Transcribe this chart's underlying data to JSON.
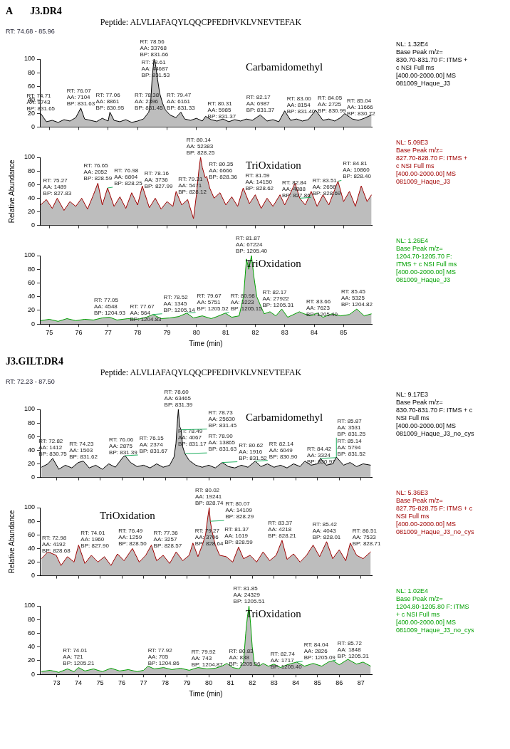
{
  "chart_data": [
    {
      "type": "area",
      "title": "J3.DR4",
      "xlim": [
        74.68,
        85.96
      ],
      "xticks": [
        75,
        76,
        77,
        78,
        79,
        80,
        81,
        82,
        83,
        84,
        85
      ],
      "ylim": [
        0,
        100
      ],
      "yticks": [
        0,
        20,
        40,
        60,
        80,
        100
      ],
      "tick_labels": "y",
      "x": [
        74.71,
        74.9,
        75.1,
        75.3,
        75.5,
        75.7,
        75.9,
        76.07,
        76.2,
        76.4,
        76.6,
        76.8,
        77.0,
        77.06,
        77.2,
        77.4,
        77.6,
        77.8,
        78.0,
        78.2,
        78.38,
        78.45,
        78.5,
        78.56,
        78.61,
        78.68,
        78.75,
        78.85,
        78.95,
        79.1,
        79.3,
        79.47,
        79.6,
        79.8,
        80.0,
        80.2,
        80.31,
        80.5,
        80.7,
        80.9,
        81.1,
        81.3,
        81.5,
        81.7,
        81.9,
        82.17,
        82.4,
        82.6,
        82.8,
        83.0,
        83.2,
        83.4,
        83.6,
        83.8,
        84.05,
        84.3,
        84.5,
        84.7,
        84.9,
        85.04,
        85.3,
        85.5,
        85.7,
        85.95
      ],
      "series": [
        {
          "color": "#000000",
          "values": [
            20,
            8,
            10,
            7,
            11,
            9,
            14,
            28,
            12,
            10,
            8,
            13,
            9,
            22,
            10,
            8,
            11,
            7,
            9,
            12,
            22,
            40,
            75,
            100,
            92,
            70,
            50,
            35,
            25,
            18,
            14,
            22,
            12,
            10,
            13,
            9,
            16,
            11,
            9,
            12,
            8,
            11,
            9,
            12,
            10,
            18,
            9,
            11,
            8,
            24,
            10,
            12,
            9,
            11,
            25,
            10,
            12,
            9,
            14,
            20,
            12,
            10,
            13,
            18
          ]
        }
      ],
      "annotations": [
        "Carbamidomethyl",
        "NL: 1.32E4\nBase Peak m/z=\n830.70-831.70 F: ITMS +\nc NSI Full ms\n[400.00-2000.00]  MS\n081009_Haque_J3",
        "A",
        "Peptide: ALVLIAFAQYLQQCPFEDHVKLVNEVTEFAK",
        "RT: 74.68 - 85.96",
        {
          "text": "RT: 74.71\nAA: 9743\nBP: 831.65",
          "x": 74.71,
          "y": 20
        },
        {
          "text": "RT: 76.07\nAA: 7104\nBP: 831.63",
          "x": 76.07,
          "y": 28
        },
        {
          "text": "RT: 77.06\nAA: 8861\nBP: 830.95",
          "x": 77.06,
          "y": 22
        },
        {
          "text": "RT: 78.38\nAA: 2396\nBP: 831.45",
          "x": 78.38,
          "y": 22
        },
        {
          "text": "RT: 78.56\nAA: 33768\nBP: 831.66",
          "x": 78.56,
          "y": 100
        },
        {
          "text": "RT: 78.61\nAA: 44687\nBP: 831.53",
          "x": 78.61,
          "y": 70
        },
        {
          "text": "RT: 79.47\nAA: 6161\nBP: 831.33",
          "x": 79.47,
          "y": 22
        },
        {
          "text": "RT: 80.31\nAA: 5985\nBP: 831.37",
          "x": 80.31,
          "y": 16
        },
        {
          "text": "RT: 82.17\nAA: 6987\nBP: 831.37",
          "x": 82.17,
          "y": 18
        },
        {
          "text": "RT: 83.00\nAA: 8154\nBP: 831.40",
          "x": 83.0,
          "y": 24
        },
        {
          "text": "RT: 84.05\nAA: 2725\nBP: 830.99",
          "x": 84.05,
          "y": 25
        },
        {
          "text": "RT: 85.04\nAA: 11666\nBP: 830.72",
          "x": 85.04,
          "y": 20
        }
      ]
    },
    {
      "type": "area",
      "ylabel": "Relative Abundance",
      "xlim": [
        74.68,
        85.96
      ],
      "xticks": [
        75,
        76,
        77,
        78,
        79,
        80,
        81,
        82,
        83,
        84,
        85
      ],
      "ylim": [
        0,
        100
      ],
      "yticks": [
        0,
        20,
        40,
        60,
        80,
        100
      ],
      "tick_labels": "y",
      "x": [
        74.7,
        74.9,
        75.1,
        75.27,
        75.5,
        75.7,
        75.9,
        76.1,
        76.3,
        76.5,
        76.65,
        76.8,
        76.98,
        77.2,
        77.4,
        77.6,
        77.8,
        78.0,
        78.16,
        78.4,
        78.6,
        78.8,
        79.0,
        79.2,
        79.31,
        79.5,
        79.7,
        79.9,
        80.0,
        80.08,
        80.14,
        80.2,
        80.3,
        80.35,
        80.45,
        80.6,
        80.8,
        81.0,
        81.2,
        81.4,
        81.59,
        81.8,
        82.0,
        82.2,
        82.4,
        82.6,
        82.84,
        83.0,
        83.2,
        83.35,
        83.51,
        83.7,
        83.9,
        84.1,
        84.3,
        84.5,
        84.81,
        85.0,
        85.2,
        85.4,
        85.6,
        85.8,
        85.95
      ],
      "series": [
        {
          "color": "#a00000",
          "values": [
            30,
            38,
            25,
            40,
            22,
            35,
            28,
            40,
            24,
            45,
            62,
            30,
            55,
            28,
            42,
            25,
            48,
            30,
            58,
            26,
            40,
            24,
            35,
            28,
            50,
            30,
            38,
            10,
            45,
            80,
            100,
            85,
            70,
            72,
            55,
            40,
            48,
            30,
            42,
            28,
            55,
            32,
            45,
            25,
            40,
            28,
            45,
            30,
            48,
            62,
            40,
            30,
            50,
            28,
            45,
            30,
            65,
            35,
            50,
            28,
            58,
            35,
            45
          ]
        }
      ],
      "annotations": [
        "TriOxidation",
        "NL: 5.09E3\nBase Peak m/z=\n827.70-828.70 F: ITMS +\nc NSI Full ms\n[400.00-2000.00]  MS\n081009_Haque_J3",
        {
          "text": "RT: 75.27\nAA: 1489\nBP: 827.83",
          "x": 75.27,
          "y": 40
        },
        {
          "text": "RT: 76.65\nAA: 2052\nBP: 828.59",
          "x": 76.65,
          "y": 62
        },
        {
          "text": "RT: 76.98\nAA: 6804\nBP: 828.25",
          "x": 76.98,
          "y": 55
        },
        {
          "text": "RT: 78.16\nAA: 3736\nBP: 827.99",
          "x": 78.16,
          "y": 58
        },
        {
          "text": "RT: 79.31\nAA: 5471\nBP: 828.12",
          "x": 79.31,
          "y": 50
        },
        {
          "text": "RT: 80.14\nAA: 52383\nBP: 828.25",
          "x": 80.14,
          "y": 100
        },
        {
          "text": "RT: 80.35\nAA: 6666\nBP: 828.36",
          "x": 80.35,
          "y": 72
        },
        {
          "text": "RT: 81.59\nAA: 14150\nBP: 828.62",
          "x": 81.59,
          "y": 55
        },
        {
          "text": "RT: 82.84\nAA: 4888\nBP: 827.86",
          "x": 82.84,
          "y": 45
        },
        {
          "text": "RT: 83.51\nAA: 2658\nBP: 828.69",
          "x": 83.51,
          "y": 40
        },
        {
          "text": "RT: 84.81\nAA: 10860\nBP: 828.40",
          "x": 84.81,
          "y": 65
        }
      ]
    },
    {
      "type": "area",
      "xlabel": "Time (min)",
      "xlim": [
        74.68,
        85.96
      ],
      "xticks": [
        75,
        76,
        77,
        78,
        79,
        80,
        81,
        82,
        83,
        84,
        85
      ],
      "ylim": [
        0,
        100
      ],
      "yticks": [
        0,
        20,
        40,
        60,
        80,
        100
      ],
      "x": [
        74.7,
        75.0,
        75.3,
        75.6,
        75.9,
        76.2,
        76.5,
        76.8,
        77.05,
        77.3,
        77.67,
        78.0,
        78.3,
        78.52,
        78.8,
        79.1,
        79.4,
        79.67,
        79.9,
        80.2,
        80.5,
        80.7,
        80.98,
        81.2,
        81.45,
        81.6,
        81.7,
        81.78,
        81.87,
        81.95,
        82.05,
        82.17,
        82.3,
        82.5,
        82.7,
        82.9,
        83.1,
        83.3,
        83.5,
        83.66,
        83.9,
        84.1,
        84.3,
        84.6,
        84.9,
        85.2,
        85.45,
        85.7,
        85.95
      ],
      "series": [
        {
          "color": "#00a000",
          "values": [
            5,
            7,
            4,
            8,
            5,
            7,
            6,
            9,
            10,
            6,
            8,
            7,
            10,
            14,
            8,
            9,
            11,
            16,
            9,
            12,
            8,
            11,
            16,
            10,
            12,
            40,
            95,
            80,
            100,
            70,
            40,
            28,
            15,
            18,
            12,
            22,
            10,
            14,
            18,
            15,
            12,
            16,
            10,
            15,
            12,
            14,
            22,
            12,
            15
          ]
        }
      ],
      "annotations": [
        "TriOxidation",
        "NL: 1.26E4\nBase Peak m/z=\n1204.70-1205.70 F:\nITMS + c NSI Full ms\n[400.00-2000.00]  MS\n081009_Haque_J3",
        {
          "text": "RT: 77.05\nAA: 4548\nBP: 1204.93",
          "x": 77.05,
          "y": 10
        },
        {
          "text": "RT: 77.67\nAA: 564\nBP: 1204.83",
          "x": 77.67,
          "y": 8
        },
        {
          "text": "RT: 78.52\nAA: 1345\nBP: 1205.14",
          "x": 78.52,
          "y": 14
        },
        {
          "text": "RT: 79.67\nAA: 5751\nBP: 1205.52",
          "x": 79.67,
          "y": 16
        },
        {
          "text": "RT: 80.98\nAA: 3223\nBP: 1205.15",
          "x": 80.98,
          "y": 16
        },
        {
          "text": "RT: 81.87\nAA: 67224\nBP: 1205.40",
          "x": 81.87,
          "y": 100
        },
        {
          "text": "RT: 82.17\nAA: 27922\nBP: 1205.31",
          "x": 82.17,
          "y": 28
        },
        {
          "text": "RT: 83.66\nAA: 7623\nBP: 1205.40",
          "x": 83.66,
          "y": 15
        },
        {
          "text": "RT: 85.45\nAA: 5325\nBP: 1204.82",
          "x": 85.45,
          "y": 22
        }
      ]
    },
    {
      "type": "area",
      "title": "J3.GILT.DR4",
      "xlim": [
        72.23,
        87.5
      ],
      "xticks": [
        73,
        74,
        75,
        76,
        77,
        78,
        79,
        80,
        81,
        82,
        83,
        84,
        85,
        86,
        87
      ],
      "ylim": [
        0,
        100
      ],
      "yticks": [
        0,
        20,
        40,
        60,
        80,
        100
      ],
      "tick_labels": "y",
      "x": [
        72.3,
        72.6,
        72.82,
        73.1,
        73.4,
        73.7,
        74.0,
        74.23,
        74.5,
        74.8,
        75.1,
        75.4,
        75.7,
        76.06,
        76.15,
        76.4,
        76.7,
        77.0,
        77.3,
        77.6,
        77.9,
        78.2,
        78.4,
        78.49,
        78.55,
        78.6,
        78.66,
        78.73,
        78.8,
        78.9,
        79.1,
        79.4,
        79.7,
        80.0,
        80.3,
        80.62,
        80.9,
        81.2,
        81.5,
        81.8,
        82.14,
        82.4,
        82.7,
        83.0,
        83.3,
        83.6,
        83.9,
        84.2,
        84.42,
        84.7,
        85.0,
        85.14,
        85.4,
        85.7,
        85.87,
        86.2,
        86.5,
        86.8,
        87.1,
        87.45
      ],
      "series": [
        {
          "color": "#000000",
          "values": [
            15,
            20,
            28,
            12,
            18,
            14,
            22,
            24,
            14,
            18,
            12,
            20,
            15,
            30,
            32,
            22,
            16,
            18,
            14,
            20,
            15,
            18,
            30,
            50,
            80,
            100,
            75,
            70,
            45,
            35,
            25,
            18,
            15,
            18,
            14,
            22,
            16,
            14,
            18,
            15,
            24,
            16,
            20,
            15,
            18,
            14,
            20,
            16,
            24,
            18,
            20,
            28,
            18,
            20,
            30,
            18,
            22,
            16,
            20,
            18
          ]
        }
      ],
      "annotations": [
        "Carbamidomethyl",
        "NL: 9.17E3\nBase Peak m/z=\n830.70-831.70 F: ITMS + c\nNSI Full ms\n[400.00-2000.00]  MS\n081009_Haque_J3_no_cys",
        "Peptide: ALVLIAFAQYLQQCPFEDHVKLVNEVTEFAK",
        "RT: 72.23 - 87.50",
        {
          "text": "RT: 72.82\nAA: 1412\nBP: 830.75",
          "x": 72.82,
          "y": 28
        },
        {
          "text": "RT: 74.23\nAA: 1503\nBP: 831.62",
          "x": 74.23,
          "y": 24
        },
        {
          "text": "RT: 76.06\nAA: 2875\nBP: 831.39",
          "x": 76.06,
          "y": 30
        },
        {
          "text": "RT: 76.15\nAA: 2374\nBP: 831.67",
          "x": 76.15,
          "y": 32
        },
        {
          "text": "RT: 78.49\nAA: 4067\nBP: 831.17",
          "x": 78.49,
          "y": 50
        },
        {
          "text": "RT: 78.60\nAA: 63465\nBP: 831.39",
          "x": 78.6,
          "y": 100
        },
        {
          "text": "RT: 78.73\nAA: 25630\nBP: 831.45",
          "x": 78.73,
          "y": 70
        },
        {
          "text": "RT: 78.90\nAA: 13865\nBP: 831.63",
          "x": 78.9,
          "y": 35
        },
        {
          "text": "RT: 80.62\nAA: 1916\nBP: 831.52",
          "x": 80.62,
          "y": 22
        },
        {
          "text": "RT: 82.14\nAA: 6049\nBP: 830.90",
          "x": 82.14,
          "y": 24
        },
        {
          "text": "RT: 84.42\nAA: 3324\nBP: 830.97",
          "x": 84.42,
          "y": 24
        },
        {
          "text": "RT: 85.14\nAA: 5794\nBP: 831.52",
          "x": 85.14,
          "y": 28
        },
        {
          "text": "RT: 85.87\nAA: 3531\nBP: 831.25",
          "x": 85.87,
          "y": 30
        }
      ]
    },
    {
      "type": "area",
      "ylabel": "Relative Abundance",
      "xlim": [
        72.23,
        87.5
      ],
      "xticks": [
        73,
        74,
        75,
        76,
        77,
        78,
        79,
        80,
        81,
        82,
        83,
        84,
        85,
        86,
        87
      ],
      "ylim": [
        0,
        100
      ],
      "yticks": [
        0,
        20,
        40,
        60,
        80,
        100
      ],
      "tick_labels": "y",
      "x": [
        72.3,
        72.6,
        72.98,
        73.2,
        73.5,
        73.8,
        74.01,
        74.3,
        74.6,
        74.9,
        75.2,
        75.5,
        75.8,
        76.1,
        76.49,
        76.8,
        77.1,
        77.36,
        77.6,
        77.9,
        78.2,
        78.5,
        78.8,
        79.1,
        79.27,
        79.5,
        79.7,
        79.85,
        79.95,
        80.02,
        80.07,
        80.15,
        80.3,
        80.5,
        80.8,
        81.1,
        81.37,
        81.6,
        81.9,
        82.2,
        82.5,
        82.8,
        83.1,
        83.37,
        83.6,
        83.9,
        84.2,
        84.5,
        84.8,
        85.1,
        85.42,
        85.7,
        86.0,
        86.3,
        86.51,
        86.8,
        87.1,
        87.45
      ],
      "series": [
        {
          "color": "#a00000",
          "values": [
            25,
            35,
            30,
            15,
            28,
            20,
            45,
            18,
            30,
            20,
            28,
            15,
            32,
            22,
            40,
            20,
            30,
            45,
            22,
            30,
            18,
            35,
            22,
            30,
            48,
            28,
            45,
            60,
            85,
            100,
            80,
            65,
            45,
            30,
            28,
            20,
            42,
            25,
            30,
            20,
            35,
            22,
            30,
            52,
            24,
            32,
            20,
            30,
            45,
            28,
            50,
            25,
            38,
            22,
            48,
            30,
            25,
            35
          ]
        }
      ],
      "annotations": [
        "TriOxidation",
        "NL: 5.36E3\nBase Peak m/z=\n827.75-828.75 F: ITMS + c\nNSI Full ms\n[400.00-2000.00]  MS\n081009_Haque_J3_no_cys",
        {
          "text": "RT: 72.98\nAA: 4192\nBP: 828.68",
          "x": 72.98,
          "y": 30
        },
        {
          "text": "RT: 74.01\nAA: 1960\nBP: 827.90",
          "x": 74.01,
          "y": 45
        },
        {
          "text": "RT: 76.49\nAA: 1259\nBP: 828.50",
          "x": 76.49,
          "y": 40
        },
        {
          "text": "RT: 77.36\nAA: 3257\nBP: 828.57",
          "x": 77.36,
          "y": 45
        },
        {
          "text": "RT: 79.27\nAA: 3706\nBP: 828.64",
          "x": 79.27,
          "y": 48
        },
        {
          "text": "RT: 80.02\nAA: 19241\nBP: 828.74",
          "x": 80.02,
          "y": 100
        },
        {
          "text": "RT: 80.07\nAA: 14109\nBP: 828.29",
          "x": 80.07,
          "y": 80
        },
        {
          "text": "RT: 81.37\nAA: 1619\nBP: 828.59",
          "x": 81.37,
          "y": 42
        },
        {
          "text": "RT: 83.37\nAA: 4218\nBP: 828.21",
          "x": 83.37,
          "y": 52
        },
        {
          "text": "RT: 85.42\nAA: 4043\nBP: 828.01",
          "x": 85.42,
          "y": 50
        },
        {
          "text": "RT: 86.51\nAA: 7533\nBP: 828.71",
          "x": 86.51,
          "y": 48
        }
      ]
    },
    {
      "type": "area",
      "xlabel": "Time (min)",
      "xlim": [
        72.23,
        87.5
      ],
      "xticks": [
        73,
        74,
        75,
        76,
        77,
        78,
        79,
        80,
        81,
        82,
        83,
        84,
        85,
        86,
        87
      ],
      "ylim": [
        0,
        100
      ],
      "yticks": [
        0,
        20,
        40,
        60,
        80,
        100
      ],
      "x": [
        72.3,
        72.7,
        73.1,
        73.5,
        73.8,
        74.01,
        74.3,
        74.7,
        75.1,
        75.5,
        75.9,
        76.3,
        76.7,
        77.0,
        77.2,
        77.5,
        77.92,
        78.3,
        78.7,
        79.1,
        79.5,
        79.92,
        80.3,
        80.6,
        80.83,
        81.1,
        81.4,
        81.6,
        81.7,
        81.78,
        81.85,
        81.92,
        82.0,
        82.1,
        82.3,
        82.5,
        82.74,
        83.0,
        83.3,
        83.6,
        84.04,
        84.4,
        84.8,
        85.2,
        85.5,
        85.72,
        86.0,
        86.4,
        86.8,
        87.1,
        87.45
      ],
      "series": [
        {
          "color": "#00a000",
          "values": [
            4,
            6,
            3,
            8,
            4,
            10,
            5,
            8,
            4,
            9,
            5,
            7,
            4,
            6,
            12,
            8,
            10,
            7,
            9,
            6,
            10,
            8,
            9,
            12,
            16,
            10,
            8,
            18,
            60,
            85,
            100,
            75,
            40,
            15,
            12,
            16,
            12,
            15,
            10,
            14,
            18,
            12,
            16,
            12,
            18,
            20,
            14,
            22,
            15,
            18,
            12
          ]
        }
      ],
      "annotations": [
        "TriOxidation",
        "NL: 1.02E4\nBase Peak m/z=\n1204.80-1205.80 F: ITMS\n+ c NSI Full ms\n[400.00-2000.00]  MS\n081009_Haque_J3_no_cys",
        {
          "text": "RT: 74.01\nAA: 721\nBP: 1205.21",
          "x": 74.01,
          "y": 10
        },
        {
          "text": "RT: 77.92\nAA: 705\nBP: 1204.86",
          "x": 77.92,
          "y": 10
        },
        {
          "text": "RT: 79.92\nAA: 743\nBP: 1204.87",
          "x": 79.92,
          "y": 8
        },
        {
          "text": "RT: 80.83\nAA: 838\nBP: 1205.56",
          "x": 80.83,
          "y": 16
        },
        {
          "text": "RT: 81.85\nAA: 24329\nBP: 1205.51",
          "x": 81.85,
          "y": 100
        },
        {
          "text": "RT: 82.74\nAA: 1717\nBP: 1205.40",
          "x": 82.74,
          "y": 12
        },
        {
          "text": "RT: 84.04\nAA: 2826\nBP: 1205.09",
          "x": 84.04,
          "y": 18
        },
        {
          "text": "RT: 85.72\nAA: 1848\nBP: 1205.31",
          "x": 85.72,
          "y": 20
        }
      ]
    }
  ]
}
